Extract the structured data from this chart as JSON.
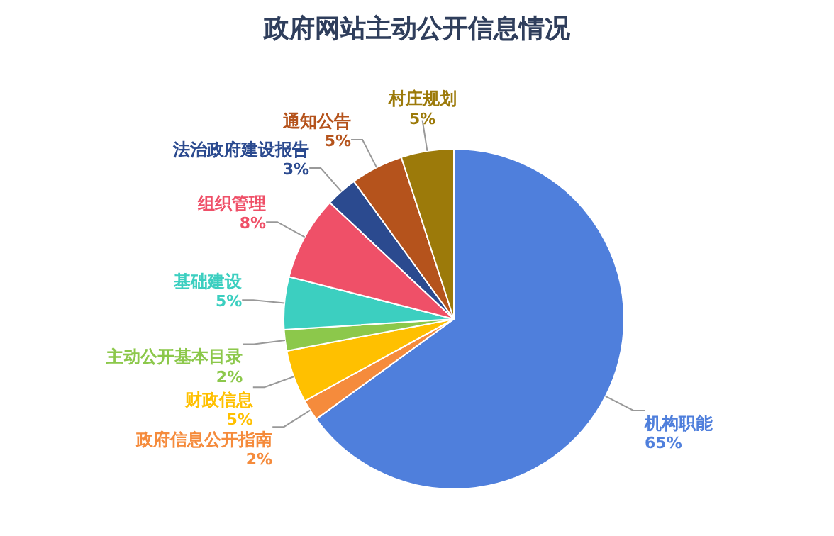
{
  "chart_data": {
    "type": "pie",
    "title": "政府网站主动公开信息情况",
    "value_labels": [
      "65%",
      "2%",
      "5%",
      "2%",
      "5%",
      "8%",
      "3%",
      "5%",
      "5%"
    ],
    "categories": [
      "机构职能",
      "政府信息公开指南",
      "财政信息",
      "主动公开基本目录",
      "基础建设",
      "组织管理",
      "法治政府建设报告",
      "通知公告",
      "村庄规划"
    ],
    "values": [
      65,
      2,
      5,
      2,
      5,
      8,
      3,
      5,
      5
    ],
    "colors": [
      "#4f7fdc",
      "#f58b3c",
      "#ffc000",
      "#8cc84b",
      "#3ccfc0",
      "#ef5068",
      "#2b4a8f",
      "#b5531c",
      "#9c7a0a"
    ]
  }
}
